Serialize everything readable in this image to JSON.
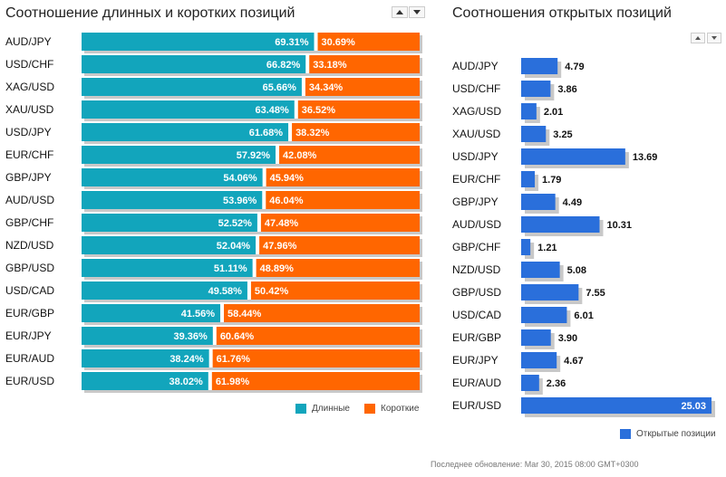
{
  "ratio_panel": {
    "title": "Соотношение длинных и коротких позиций",
    "legend": {
      "long_label": "Длинные",
      "short_label": "Короткие"
    }
  },
  "open_panel": {
    "title": "Соотношения открытых позиций",
    "legend": {
      "label": "Открытые позиции"
    }
  },
  "footer": {
    "updated": "Последнее обновление: Mar 30, 2015 08:00 GMT+0300"
  },
  "colors": {
    "long": "#12A5BC",
    "short": "#FF6600",
    "open": "#2A6FDB",
    "shadow": "#C8C8C8"
  },
  "chart_data": [
    {
      "type": "bar",
      "orientation": "horizontal",
      "stacked": true,
      "title": "Соотношение длинных и коротких позиций",
      "categories": [
        "AUD/JPY",
        "USD/CHF",
        "XAG/USD",
        "XAU/USD",
        "USD/JPY",
        "EUR/CHF",
        "GBP/JPY",
        "AUD/USD",
        "GBP/CHF",
        "NZD/USD",
        "GBP/USD",
        "USD/CAD",
        "EUR/GBP",
        "EUR/JPY",
        "EUR/AUD",
        "EUR/USD"
      ],
      "series": [
        {
          "name": "Длинные",
          "values": [
            69.31,
            66.82,
            65.66,
            63.48,
            61.68,
            57.92,
            54.06,
            53.96,
            52.52,
            52.04,
            51.11,
            49.58,
            41.56,
            39.36,
            38.24,
            38.02
          ],
          "labels": [
            "69.31%",
            "66.82%",
            "65.66%",
            "63.48%",
            "61.68%",
            "57.92%",
            "54.06%",
            "53.96%",
            "52.52%",
            "52.04%",
            "51.11%",
            "49.58%",
            "41.56%",
            "39.36%",
            "38.24%",
            "38.02%"
          ]
        },
        {
          "name": "Короткие",
          "values": [
            30.69,
            33.18,
            34.34,
            36.52,
            38.32,
            42.08,
            45.94,
            46.04,
            47.48,
            47.96,
            48.89,
            50.42,
            58.44,
            60.64,
            61.76,
            61.98
          ],
          "labels": [
            "30.69%",
            "33.18%",
            "34.34%",
            "36.52%",
            "38.32%",
            "42.08%",
            "45.94%",
            "46.04%",
            "47.48%",
            "47.96%",
            "48.89%",
            "50.42%",
            "58.44%",
            "60.64%",
            "61.76%",
            "61.98%"
          ]
        }
      ],
      "xlim": [
        0,
        100
      ],
      "legend_position": "bottom-right"
    },
    {
      "type": "bar",
      "orientation": "horizontal",
      "title": "Соотношения открытых позиций",
      "categories": [
        "AUD/JPY",
        "USD/CHF",
        "XAG/USD",
        "XAU/USD",
        "USD/JPY",
        "EUR/CHF",
        "GBP/JPY",
        "AUD/USD",
        "GBP/CHF",
        "NZD/USD",
        "GBP/USD",
        "USD/CAD",
        "EUR/GBP",
        "EUR/JPY",
        "EUR/AUD",
        "EUR/USD"
      ],
      "series": [
        {
          "name": "Открытые позиции",
          "values": [
            4.79,
            3.86,
            2.01,
            3.25,
            13.69,
            1.79,
            4.49,
            10.31,
            1.21,
            5.08,
            7.55,
            6.01,
            3.9,
            4.67,
            2.36,
            25.03
          ],
          "labels": [
            "4.79",
            "3.86",
            "2.01",
            "3.25",
            "13.69",
            "1.79",
            "4.49",
            "10.31",
            "1.21",
            "5.08",
            "7.55",
            "6.01",
            "3.90",
            "4.67",
            "2.36",
            "25.03"
          ]
        }
      ],
      "xlim": [
        0,
        25.03
      ],
      "legend_position": "bottom-right"
    }
  ]
}
